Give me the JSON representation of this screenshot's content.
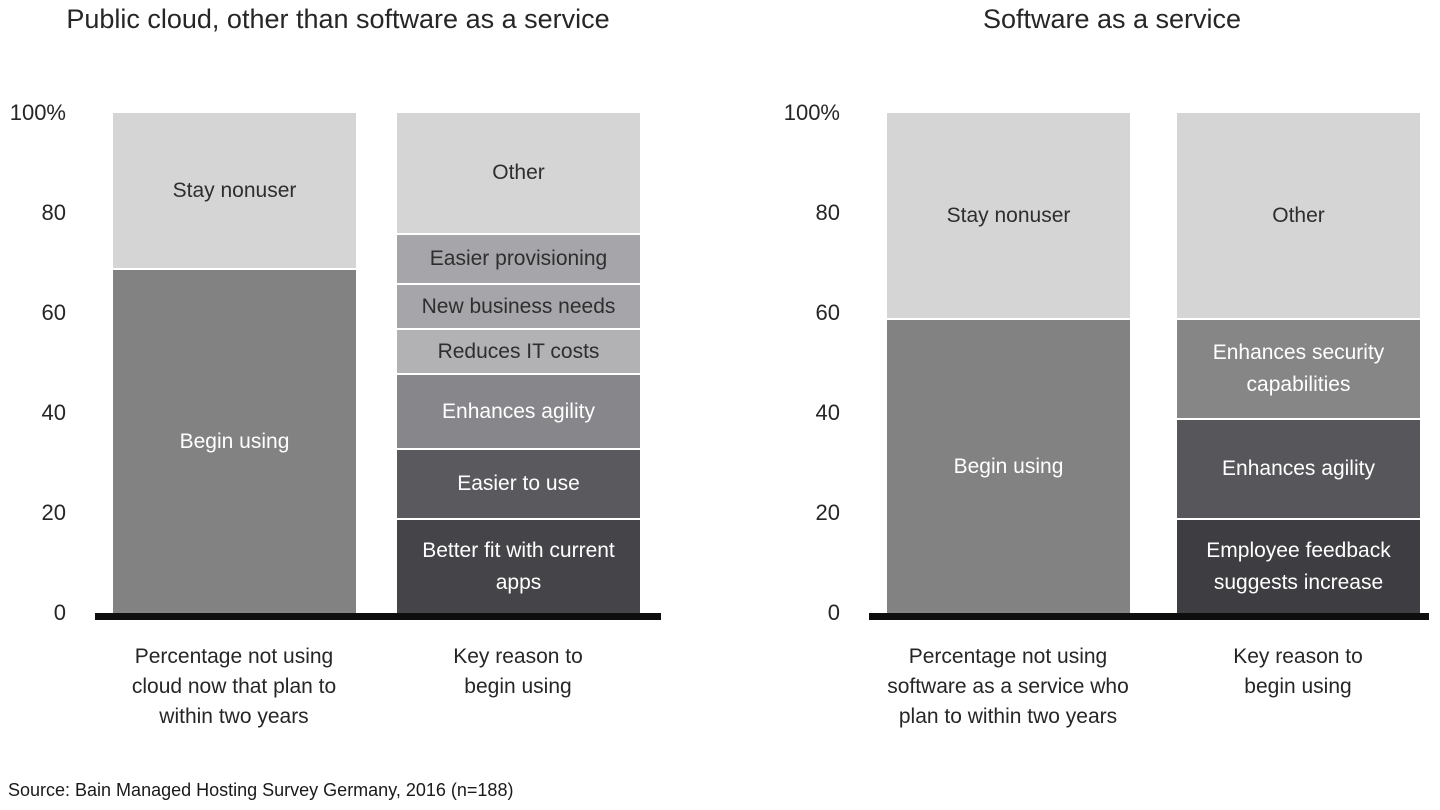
{
  "source": "Source: Bain Managed Hosting Survey Germany, 2016 (n=188)",
  "chart_data": [
    {
      "type": "bar",
      "stacked": true,
      "title": "Public cloud, other than software as a service",
      "ylim": [
        0,
        100
      ],
      "yticks": [
        "100%",
        "80",
        "60",
        "40",
        "20",
        "0"
      ],
      "grid": false,
      "legend": "none",
      "bars": [
        {
          "category": "Percentage not using\ncloud now that plan to\nwithin two years",
          "segments": [
            {
              "label": "Begin using",
              "value": 69,
              "color": "#828282",
              "text_color": "#ffffff"
            },
            {
              "label": "Stay nonuser",
              "value": 31,
              "color": "#d5d5d5",
              "text_color": "#2e2e2e"
            }
          ]
        },
        {
          "category": "Key reason to\nbegin using",
          "segments": [
            {
              "label": "Better fit with current apps",
              "value": 19,
              "color": "#454549",
              "text_color": "#ffffff"
            },
            {
              "label": "Easier to use",
              "value": 14,
              "color": "#5a5a5e",
              "text_color": "#ffffff"
            },
            {
              "label": "Enhances agility",
              "value": 15,
              "color": "#87878b",
              "text_color": "#ffffff"
            },
            {
              "label": "Reduces IT costs",
              "value": 9,
              "color": "#b2b2b5",
              "text_color": "#2e2e2e"
            },
            {
              "label": "New business needs",
              "value": 9,
              "color": "#a6a6aa",
              "text_color": "#2e2e2e"
            },
            {
              "label": "Easier provisioning",
              "value": 10,
              "color": "#a6a6aa",
              "text_color": "#2e2e2e"
            },
            {
              "label": "Other",
              "value": 24,
              "color": "#d5d5d5",
              "text_color": "#2e2e2e"
            }
          ]
        }
      ]
    },
    {
      "type": "bar",
      "stacked": true,
      "title": "Software as a service",
      "ylim": [
        0,
        100
      ],
      "yticks": [
        "100%",
        "80",
        "60",
        "40",
        "20",
        "0"
      ],
      "grid": false,
      "legend": "none",
      "bars": [
        {
          "category": "Percentage not using\nsoftware as a service who\nplan to within two years",
          "segments": [
            {
              "label": "Begin using",
              "value": 59,
              "color": "#828282",
              "text_color": "#ffffff"
            },
            {
              "label": "Stay nonuser",
              "value": 41,
              "color": "#d5d5d5",
              "text_color": "#2e2e2e"
            }
          ]
        },
        {
          "category": "Key reason to\nbegin using",
          "segments": [
            {
              "label": "Employee feedback suggests increase",
              "value": 19,
              "color": "#3e3e42",
              "text_color": "#ffffff"
            },
            {
              "label": "Enhances agility",
              "value": 20,
              "color": "#57575b",
              "text_color": "#ffffff"
            },
            {
              "label": "Enhances security capabilities",
              "value": 20,
              "color": "#868686",
              "text_color": "#ffffff"
            },
            {
              "label": "Other",
              "value": 41,
              "color": "#d5d5d5",
              "text_color": "#2e2e2e"
            }
          ]
        }
      ]
    }
  ]
}
